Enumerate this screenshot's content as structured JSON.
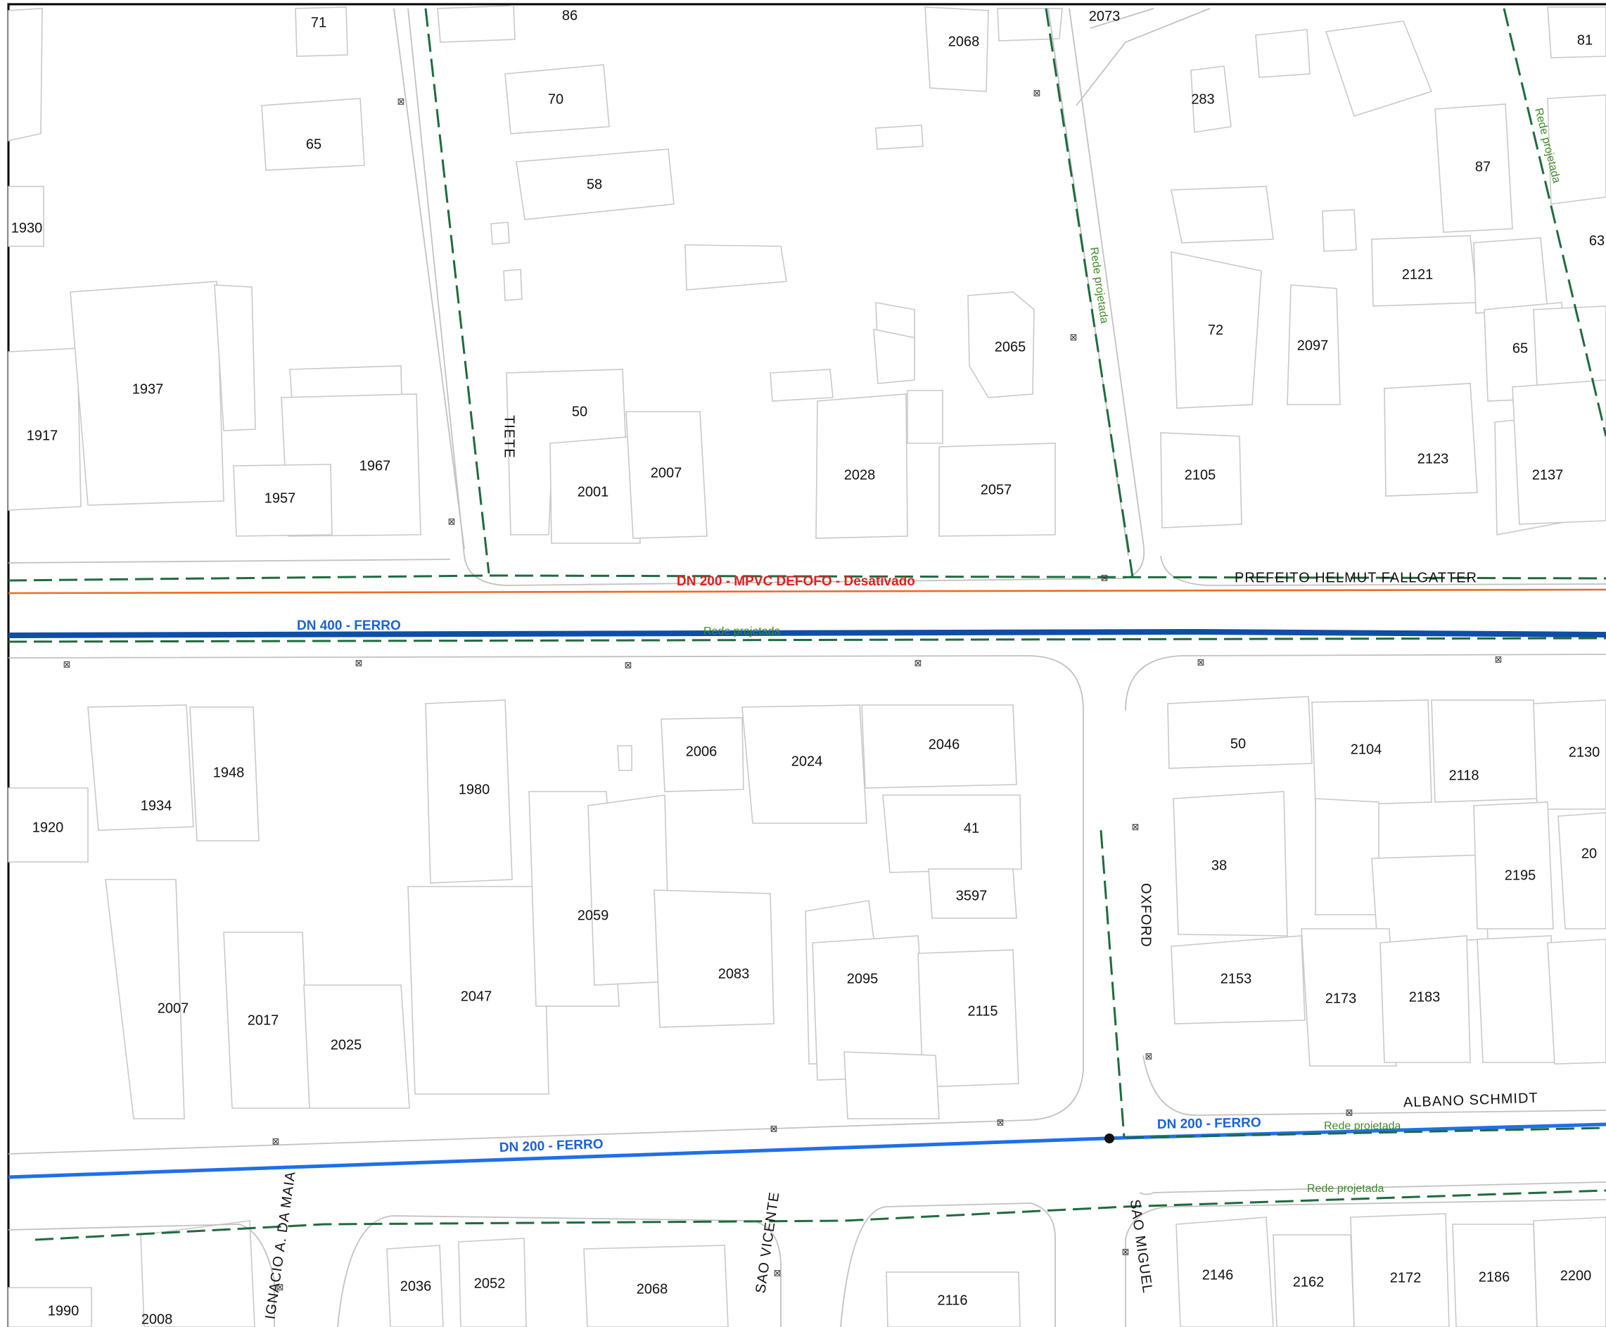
{
  "streets": {
    "tiete": "TIETE",
    "prefeito": "PREFEITO  HELMUT  FALLGATTER",
    "oxford": "OXFORD",
    "albano": "ALBANO  SCHMIDT",
    "ignacio": "IGNACIO  A.  DA  MAIA",
    "sao_vicente": "SAO  VICENTE",
    "sao_miguel": "SAO  MIGUEL"
  },
  "pipes": {
    "dn200_mpvc": "DN 200 - MPVC DEFOFO - Desativado",
    "dn400": "DN 400 - FERRO",
    "dn200_ferro_a": "DN 200 - FERRO",
    "dn200_ferro_b": "DN 200 - FERRO",
    "rede_1": "Rede projetada",
    "rede_2": "Rede projetada",
    "rede_3": "Rede projetada",
    "rede_4": "Rede projetada",
    "rede_5": "Rede projetada"
  },
  "hydrant_symbol": "⊠",
  "lots": [
    "71",
    "86",
    "2073",
    "81",
    "2068",
    "283",
    "70",
    "65",
    "58",
    "87",
    "1930",
    "63",
    "2121",
    "72",
    "2065",
    "2097",
    "65",
    "1937",
    "50",
    "1917",
    "2123",
    "1967",
    "2007",
    "2028",
    "2057",
    "2105",
    "2137",
    "1957",
    "2001",
    "2006",
    "2046",
    "50",
    "2104",
    "2130",
    "2024",
    "1948",
    "2118",
    "1980",
    "1934",
    "41",
    "1920",
    "38",
    "20",
    "2195",
    "2059",
    "3597",
    "2083",
    "2095",
    "2153",
    "2183",
    "2007",
    "2047",
    "2173",
    "2017",
    "2115",
    "2025",
    "2036",
    "2052",
    "2068",
    "2146",
    "2162",
    "2172",
    "2186",
    "2200",
    "1990",
    "2008",
    "2116"
  ],
  "colors": {
    "green_network": "#1e6b3e",
    "green_label": "#3f8a2a",
    "blue_pipe": "#1f6fe8",
    "navy_pipe": "#0d4ea8",
    "orange_pipe": "#ee6a23",
    "red_label": "#e02020"
  }
}
